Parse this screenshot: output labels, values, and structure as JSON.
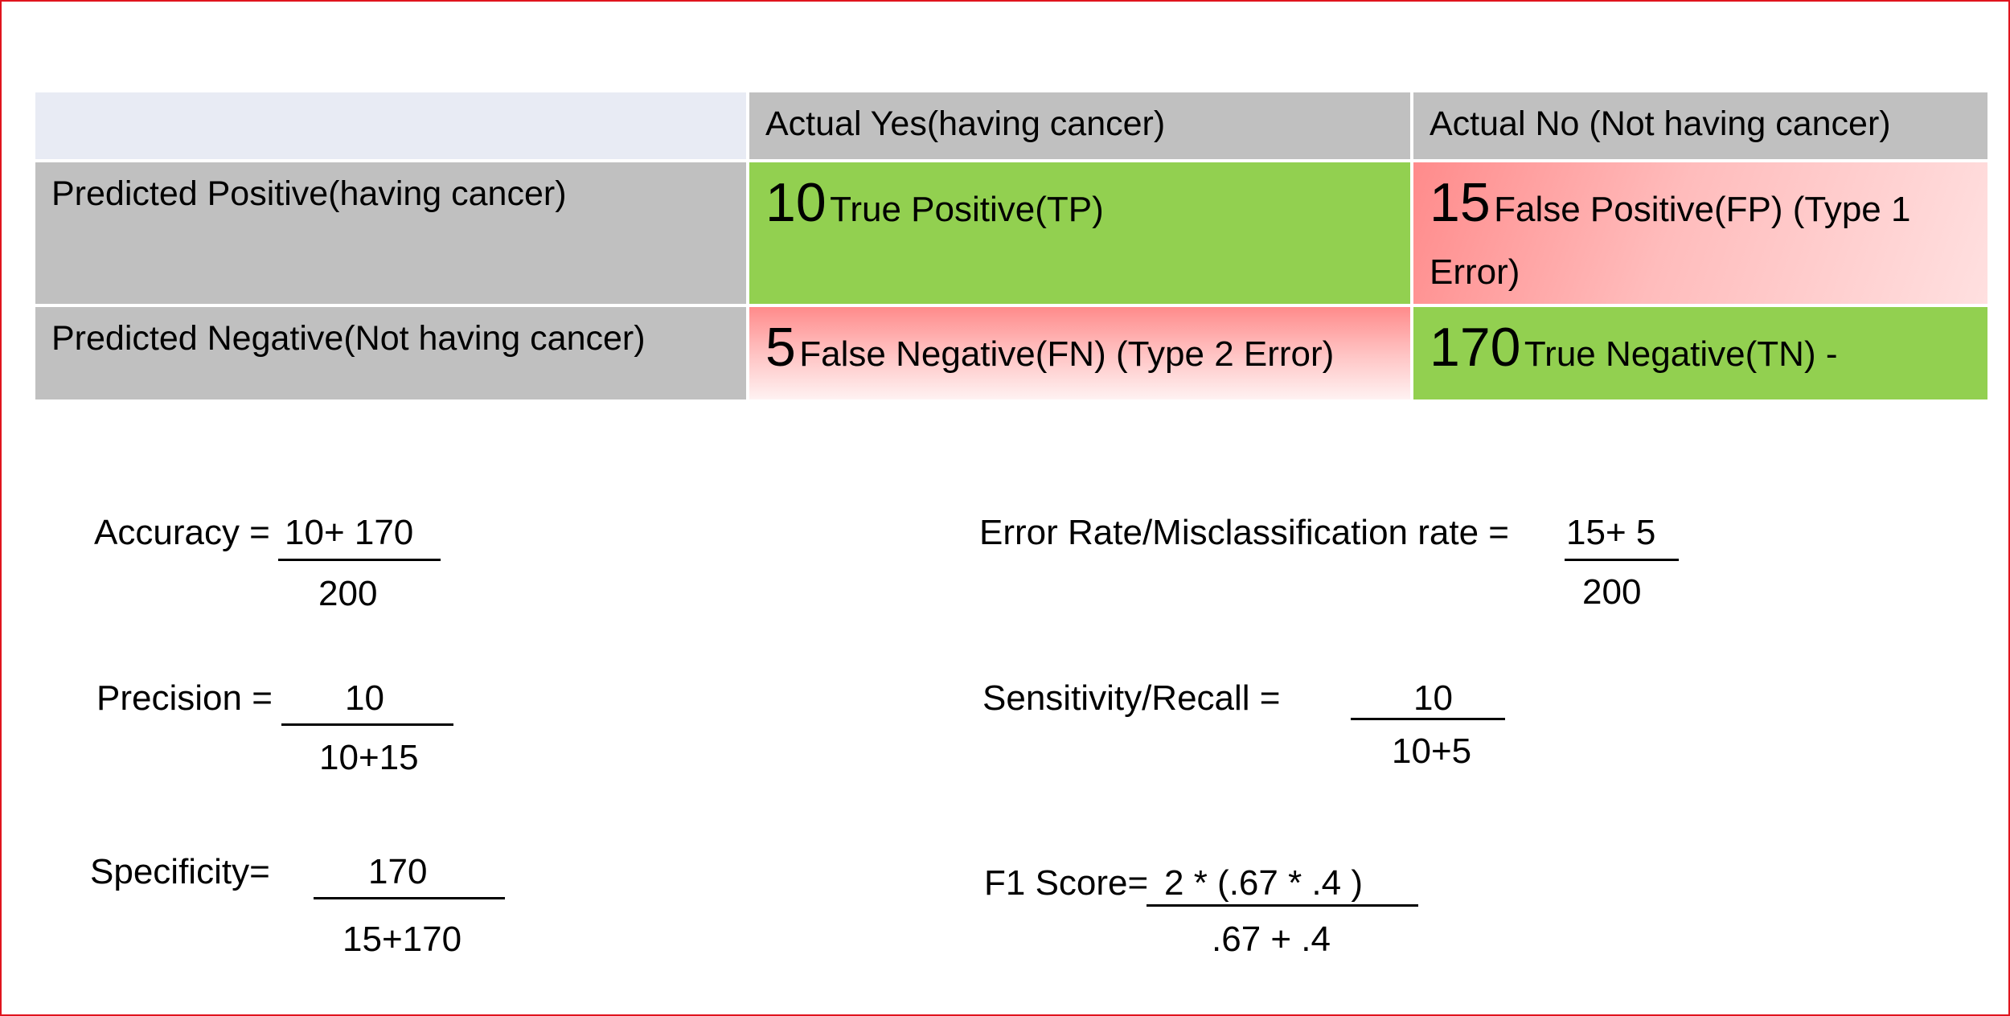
{
  "table": {
    "col_headers": [
      "Actual Yes(having cancer)",
      "Actual No (Not having cancer)"
    ],
    "row_labels": [
      "Predicted Positive(having cancer)",
      "Predicted Negative(Not having cancer)"
    ],
    "cells": {
      "tp": {
        "value": "10",
        "label": "True Positive(TP)"
      },
      "fp": {
        "value": "15",
        "label": "False Positive(FP) (Type 1 Error)"
      },
      "fn": {
        "value": "5",
        "label": "False Negative(FN) (Type 2 Error)"
      },
      "tn": {
        "value": "170",
        "label": "True Negative(TN) -"
      }
    },
    "colors": {
      "positive": "#92d050",
      "negative": "#ff8b8b",
      "header": "#c0c0c0"
    }
  },
  "formulas": {
    "accuracy": {
      "label": "Accuracy =",
      "numerator": "10+ 170",
      "denominator": "200"
    },
    "error_rate": {
      "label": "Error Rate/Misclassification rate  =",
      "numerator": "15+ 5",
      "denominator": "200"
    },
    "precision": {
      "label": "Precision =",
      "numerator": "10",
      "denominator": "10+15"
    },
    "recall": {
      "label": "Sensitivity/Recall =",
      "numerator": "10",
      "denominator": "10+5"
    },
    "specificity": {
      "label": "Specificity=",
      "numerator": "170",
      "denominator": "15+170"
    },
    "f1": {
      "label": "F1 Score=",
      "numerator": "2 * (.67 * .4 )",
      "denominator": ".67 + .4"
    }
  }
}
